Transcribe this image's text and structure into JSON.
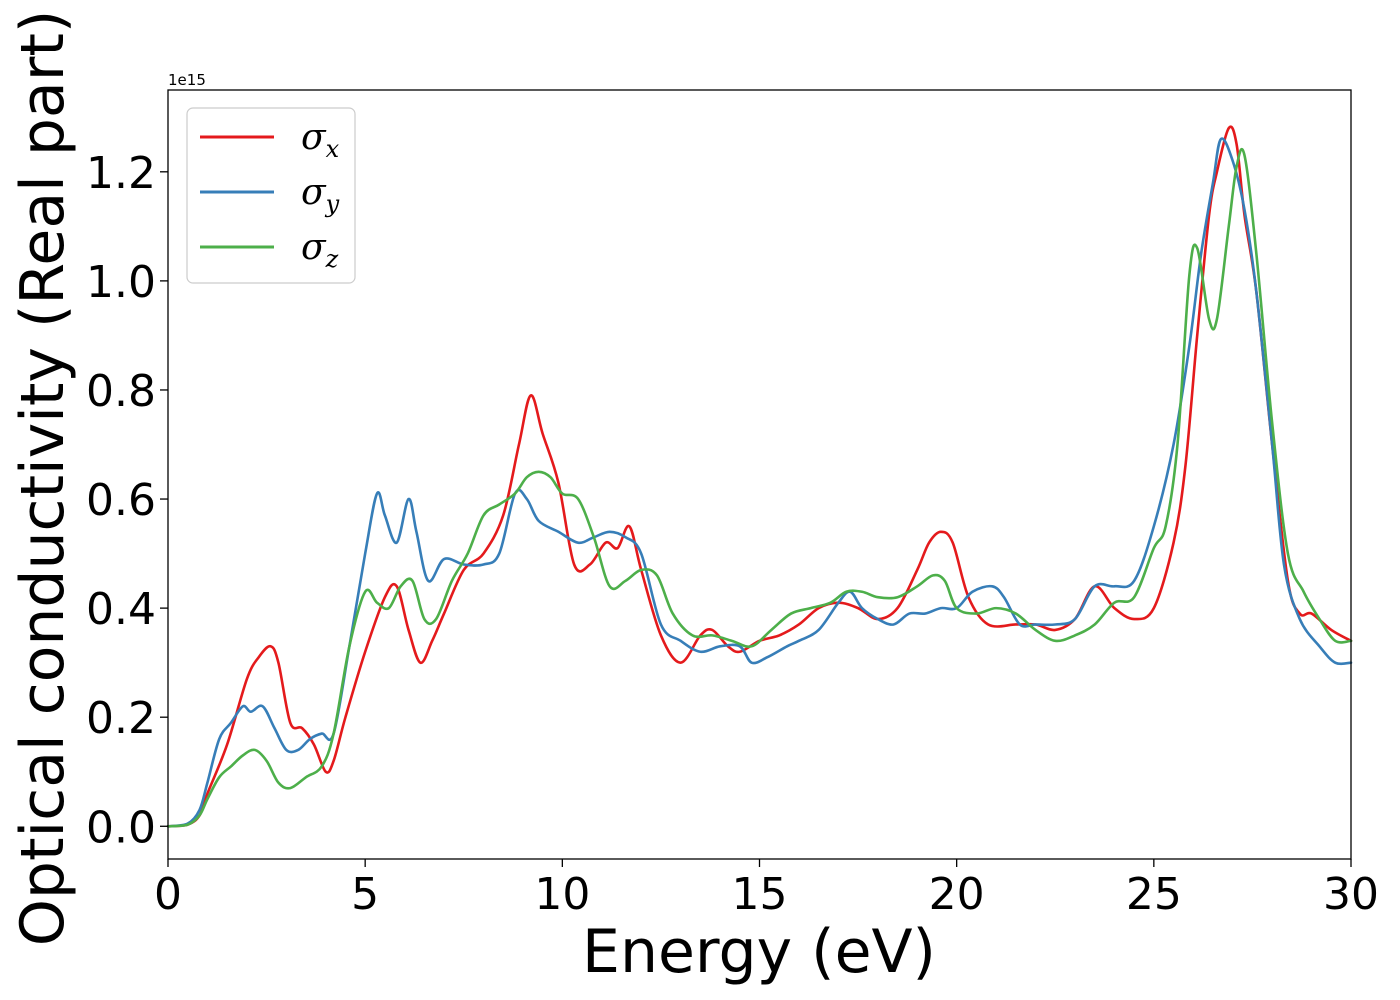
{
  "chart_data": {
    "type": "line",
    "xlabel": "Energy (eV)",
    "ylabel": "Optical conductivity (Real part)",
    "y_offset_label": "1e15",
    "xlim": [
      0,
      30
    ],
    "ylim": [
      -0.06,
      1.35
    ],
    "x_ticks": [
      0,
      5,
      10,
      15,
      20,
      25,
      30
    ],
    "x_tick_labels": [
      "0",
      "5",
      "10",
      "15",
      "20",
      "25",
      "30"
    ],
    "y_ticks": [
      0.0,
      0.2,
      0.4,
      0.6,
      0.8,
      1.0,
      1.2
    ],
    "y_tick_labels": [
      "0.0",
      "0.2",
      "0.4",
      "0.6",
      "0.8",
      "1.0",
      "1.2"
    ],
    "grid": false,
    "legend_position": "top-left",
    "series": [
      {
        "name": "σx",
        "symbol": "σ",
        "subscript": "x",
        "color": "#e41a1c",
        "x": [
          0,
          0.5,
          0.8,
          1.0,
          1.5,
          2.0,
          2.3,
          2.6,
          2.8,
          3.1,
          3.4,
          3.7,
          4.0,
          4.2,
          4.5,
          5.0,
          5.5,
          5.8,
          6.1,
          6.4,
          6.7,
          7.0,
          7.5,
          8.0,
          8.5,
          8.9,
          9.2,
          9.5,
          9.9,
          10.3,
          10.7,
          11.1,
          11.4,
          11.7,
          12.0,
          12.5,
          13.0,
          13.5,
          13.8,
          14.2,
          14.5,
          15.0,
          15.5,
          16.0,
          16.5,
          17.0,
          17.5,
          18.0,
          18.5,
          19.0,
          19.3,
          19.6,
          19.9,
          20.3,
          20.8,
          21.5,
          22.0,
          22.5,
          23.0,
          23.5,
          24.0,
          24.5,
          25.0,
          25.5,
          25.8,
          26.1,
          26.4,
          26.6,
          26.9,
          27.1,
          27.3,
          27.6,
          28.0,
          28.4,
          28.7,
          29.0,
          29.5,
          30.0
        ],
        "y": [
          0.0,
          0.003,
          0.02,
          0.06,
          0.15,
          0.27,
          0.31,
          0.33,
          0.3,
          0.19,
          0.18,
          0.15,
          0.1,
          0.12,
          0.2,
          0.32,
          0.42,
          0.44,
          0.36,
          0.3,
          0.34,
          0.39,
          0.47,
          0.5,
          0.57,
          0.7,
          0.79,
          0.72,
          0.63,
          0.48,
          0.48,
          0.52,
          0.51,
          0.55,
          0.47,
          0.35,
          0.3,
          0.35,
          0.36,
          0.33,
          0.32,
          0.34,
          0.35,
          0.37,
          0.4,
          0.41,
          0.4,
          0.38,
          0.4,
          0.47,
          0.52,
          0.54,
          0.52,
          0.42,
          0.37,
          0.37,
          0.37,
          0.36,
          0.38,
          0.44,
          0.4,
          0.38,
          0.4,
          0.52,
          0.66,
          0.9,
          1.12,
          1.2,
          1.28,
          1.25,
          1.12,
          0.98,
          0.7,
          0.45,
          0.39,
          0.39,
          0.36,
          0.34
        ]
      },
      {
        "name": "σy",
        "symbol": "σ",
        "subscript": "y",
        "color": "#377eb8",
        "x": [
          0,
          0.5,
          0.8,
          1.0,
          1.3,
          1.6,
          1.9,
          2.1,
          2.4,
          2.7,
          3.0,
          3.3,
          3.6,
          3.9,
          4.2,
          4.6,
          5.0,
          5.3,
          5.5,
          5.8,
          6.1,
          6.3,
          6.6,
          7.0,
          7.5,
          8.0,
          8.4,
          8.8,
          9.1,
          9.4,
          9.9,
          10.4,
          10.8,
          11.2,
          11.6,
          12.0,
          12.5,
          13.0,
          13.5,
          14.0,
          14.5,
          14.8,
          15.2,
          15.7,
          16.0,
          16.5,
          17.0,
          17.3,
          17.6,
          18.0,
          18.4,
          18.8,
          19.2,
          19.6,
          20.0,
          20.4,
          20.9,
          21.2,
          21.6,
          22.0,
          22.5,
          23.0,
          23.5,
          24.0,
          24.5,
          25.0,
          25.5,
          25.9,
          26.2,
          26.5,
          26.7,
          27.0,
          27.3,
          27.6,
          28.0,
          28.3,
          28.7,
          29.2,
          29.6,
          30.0
        ],
        "y": [
          0.0,
          0.005,
          0.03,
          0.08,
          0.16,
          0.19,
          0.22,
          0.21,
          0.22,
          0.18,
          0.14,
          0.14,
          0.16,
          0.17,
          0.17,
          0.33,
          0.5,
          0.61,
          0.57,
          0.52,
          0.6,
          0.54,
          0.45,
          0.49,
          0.48,
          0.48,
          0.5,
          0.61,
          0.6,
          0.56,
          0.54,
          0.52,
          0.53,
          0.54,
          0.53,
          0.5,
          0.37,
          0.34,
          0.32,
          0.33,
          0.33,
          0.3,
          0.31,
          0.33,
          0.34,
          0.36,
          0.41,
          0.43,
          0.4,
          0.38,
          0.37,
          0.39,
          0.39,
          0.4,
          0.4,
          0.43,
          0.44,
          0.42,
          0.37,
          0.37,
          0.37,
          0.38,
          0.44,
          0.44,
          0.45,
          0.55,
          0.7,
          0.88,
          1.05,
          1.18,
          1.26,
          1.22,
          1.13,
          0.98,
          0.7,
          0.48,
          0.38,
          0.33,
          0.3,
          0.3
        ]
      },
      {
        "name": "σz",
        "symbol": "σ",
        "subscript": "z",
        "color": "#4daf4a",
        "x": [
          0,
          0.5,
          0.8,
          1.0,
          1.3,
          1.6,
          1.9,
          2.2,
          2.5,
          2.8,
          3.1,
          3.5,
          3.9,
          4.2,
          4.6,
          5.0,
          5.3,
          5.6,
          5.9,
          6.2,
          6.5,
          6.8,
          7.2,
          7.6,
          8.0,
          8.4,
          8.8,
          9.1,
          9.4,
          9.7,
          10.0,
          10.4,
          10.8,
          11.2,
          11.6,
          12.0,
          12.4,
          12.8,
          13.3,
          13.8,
          14.3,
          14.8,
          15.3,
          15.8,
          16.3,
          16.8,
          17.2,
          17.6,
          18.0,
          18.5,
          19.0,
          19.4,
          19.7,
          20.0,
          20.5,
          21.0,
          21.5,
          22.0,
          22.5,
          23.0,
          23.5,
          24.0,
          24.5,
          25.0,
          25.3,
          25.6,
          25.9,
          26.1,
          26.4,
          26.6,
          26.9,
          27.1,
          27.3,
          27.6,
          28.0,
          28.4,
          28.8,
          29.2,
          29.6,
          30.0
        ],
        "y": [
          0.0,
          0.003,
          0.02,
          0.05,
          0.09,
          0.11,
          0.13,
          0.14,
          0.12,
          0.08,
          0.07,
          0.09,
          0.11,
          0.17,
          0.33,
          0.43,
          0.41,
          0.4,
          0.44,
          0.45,
          0.38,
          0.38,
          0.45,
          0.5,
          0.57,
          0.59,
          0.61,
          0.64,
          0.65,
          0.64,
          0.61,
          0.6,
          0.53,
          0.44,
          0.45,
          0.47,
          0.46,
          0.39,
          0.35,
          0.35,
          0.34,
          0.33,
          0.36,
          0.39,
          0.4,
          0.41,
          0.43,
          0.43,
          0.42,
          0.42,
          0.44,
          0.46,
          0.45,
          0.4,
          0.39,
          0.4,
          0.39,
          0.36,
          0.34,
          0.35,
          0.37,
          0.41,
          0.42,
          0.51,
          0.55,
          0.7,
          1.01,
          1.06,
          0.93,
          0.93,
          1.1,
          1.21,
          1.23,
          1.05,
          0.74,
          0.5,
          0.43,
          0.38,
          0.34,
          0.34
        ]
      }
    ]
  }
}
